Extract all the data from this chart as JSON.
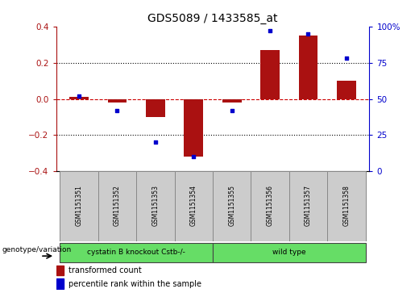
{
  "title": "GDS5089 / 1433585_at",
  "samples": [
    "GSM1151351",
    "GSM1151352",
    "GSM1151353",
    "GSM1151354",
    "GSM1151355",
    "GSM1151356",
    "GSM1151357",
    "GSM1151358"
  ],
  "red_bars": [
    0.01,
    -0.02,
    -0.1,
    -0.32,
    -0.02,
    0.27,
    0.35,
    0.1
  ],
  "blue_dots": [
    52,
    42,
    20,
    10,
    42,
    97,
    95,
    78
  ],
  "bar_color": "#aa1111",
  "dot_color": "#0000cc",
  "zero_line_color": "#cc0000",
  "ylim_left": [
    -0.4,
    0.4
  ],
  "ylim_right": [
    0,
    100
  ],
  "yticks_left": [
    -0.4,
    -0.2,
    0.0,
    0.2,
    0.4
  ],
  "yticks_right": [
    0,
    25,
    50,
    75,
    100
  ],
  "ytick_labels_right": [
    "0",
    "25",
    "50",
    "75",
    "100%"
  ],
  "group1_label": "cystatin B knockout Cstb-/-",
  "group2_label": "wild type",
  "group1_indices": [
    0,
    1,
    2,
    3
  ],
  "group2_indices": [
    4,
    5,
    6,
    7
  ],
  "group_color": "#66dd66",
  "group_label_prefix": "genotype/variation",
  "legend_red": "transformed count",
  "legend_blue": "percentile rank within the sample",
  "bg_color": "#ffffff",
  "plot_bg_color": "#ffffff",
  "sample_box_color": "#cccccc",
  "bar_width": 0.5
}
